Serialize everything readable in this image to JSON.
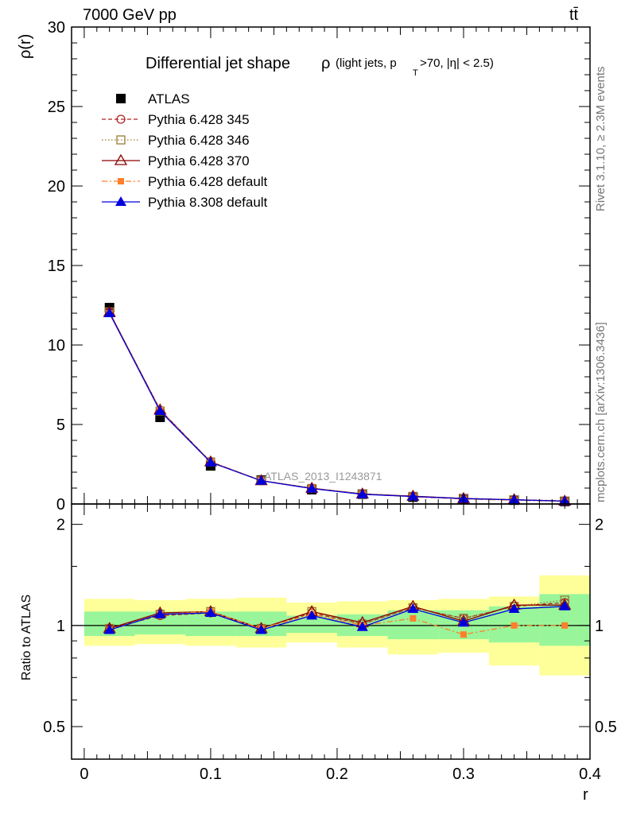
{
  "header": {
    "beam": "7000 GeV pp",
    "process": "tt̄"
  },
  "side_labels": {
    "rivet": "Rivet 3.1.10, ≥ 2.3M events",
    "mcplots": "mcplots.cern.ch [arXiv:1306.3436]"
  },
  "watermark": "ATLAS_2013_I1243871",
  "colors": {
    "atlas": "#000000",
    "p345": "#b22222",
    "p346": "#9a7d32",
    "p370": "#8b0000",
    "p6def": "#ff7f2a",
    "p8def": "#0000dd",
    "band_inner": "#99f599",
    "band_outer": "#ffff99"
  },
  "chart_data": [
    {
      "type": "line",
      "title": "Differential jet shape",
      "title_symbol": "ρ",
      "title_detail_prefix": "(light jets, p",
      "title_detail_sub": "T",
      "title_detail_suffix": ">70, |η| < 2.5)",
      "ylabel": "ρ(r)",
      "xlabel": "",
      "ylim": [
        0,
        30
      ],
      "yticks": [
        0,
        5,
        10,
        15,
        20,
        25,
        30
      ],
      "xlim": [
        -0.01,
        0.4
      ],
      "legend_position": "top-left",
      "x": [
        0.02,
        0.06,
        0.1,
        0.14,
        0.18,
        0.22,
        0.26,
        0.3,
        0.34,
        0.38
      ],
      "series": [
        {
          "name": "ATLAS",
          "key": "atlas",
          "style": "square",
          "values": [
            12.35,
            5.45,
            2.4,
            1.5,
            0.9,
            0.62,
            0.43,
            0.33,
            0.24,
            0.16
          ]
        },
        {
          "name": "Pythia 6.428 345",
          "key": "p345",
          "style": "circle-dashed",
          "values": [
            12.05,
            5.85,
            2.63,
            1.47,
            0.98,
            0.63,
            0.48,
            0.35,
            0.27,
            0.19
          ]
        },
        {
          "name": "Pythia 6.428 346",
          "key": "p346",
          "style": "square-dotted",
          "values": [
            12.08,
            5.85,
            2.65,
            1.47,
            0.98,
            0.63,
            0.48,
            0.35,
            0.27,
            0.19
          ]
        },
        {
          "name": "Pythia 6.428 370",
          "key": "p370",
          "style": "triangle-open",
          "values": [
            12.05,
            5.92,
            2.65,
            1.47,
            0.99,
            0.63,
            0.49,
            0.34,
            0.27,
            0.18
          ]
        },
        {
          "name": "Pythia 6.428 default",
          "key": "p6def",
          "style": "square-dashdot",
          "values": [
            12.0,
            5.9,
            2.64,
            1.47,
            0.98,
            0.62,
            0.45,
            0.31,
            0.24,
            0.16
          ]
        },
        {
          "name": "Pythia 8.308 default",
          "key": "p8def",
          "style": "triangle-filled",
          "values": [
            12.0,
            5.85,
            2.62,
            1.46,
            0.97,
            0.61,
            0.47,
            0.34,
            0.26,
            0.18
          ]
        }
      ]
    },
    {
      "type": "line",
      "title": "",
      "ylabel": "Ratio to ATLAS",
      "xlabel": "r",
      "log_y": true,
      "ylim": [
        0.4,
        2.3
      ],
      "yticks": [
        0.5,
        1,
        2
      ],
      "xlim": [
        -0.01,
        0.4
      ],
      "xticks": [
        0,
        0.1,
        0.2,
        0.3,
        0.4
      ],
      "x": [
        0.02,
        0.06,
        0.1,
        0.14,
        0.18,
        0.22,
        0.26,
        0.3,
        0.34,
        0.38
      ],
      "x_edges": [
        0.0,
        0.04,
        0.08,
        0.12,
        0.16,
        0.2,
        0.24,
        0.28,
        0.32,
        0.36,
        0.4
      ],
      "bands": {
        "inner": [
          [
            0.93,
            1.1
          ],
          [
            0.94,
            1.1
          ],
          [
            0.93,
            1.1
          ],
          [
            0.93,
            1.1
          ],
          [
            0.95,
            1.07
          ],
          [
            0.93,
            1.08
          ],
          [
            0.91,
            1.11
          ],
          [
            0.91,
            1.11
          ],
          [
            0.89,
            1.14
          ],
          [
            0.87,
            1.24
          ]
        ],
        "outer": [
          [
            0.87,
            1.2
          ],
          [
            0.88,
            1.19
          ],
          [
            0.87,
            1.2
          ],
          [
            0.86,
            1.21
          ],
          [
            0.89,
            1.17
          ],
          [
            0.86,
            1.18
          ],
          [
            0.82,
            1.19
          ],
          [
            0.83,
            1.2
          ],
          [
            0.76,
            1.22
          ],
          [
            0.71,
            1.41
          ]
        ]
      },
      "series": [
        {
          "name": "Pythia 6.428 345",
          "key": "p345",
          "style": "circle-dashed",
          "values": [
            0.98,
            1.07,
            1.09,
            0.98,
            1.09,
            1.01,
            1.13,
            1.05,
            1.14,
            1.17
          ]
        },
        {
          "name": "Pythia 6.428 346",
          "key": "p346",
          "style": "square-dotted",
          "values": [
            0.98,
            1.08,
            1.1,
            0.98,
            1.1,
            1.01,
            1.13,
            1.05,
            1.14,
            1.19
          ]
        },
        {
          "name": "Pythia 6.428 370",
          "key": "p370",
          "style": "triangle-open",
          "values": [
            0.98,
            1.09,
            1.1,
            0.98,
            1.1,
            1.02,
            1.14,
            1.03,
            1.15,
            1.15
          ]
        },
        {
          "name": "Pythia 6.428 default",
          "key": "p6def",
          "style": "square-dashdot",
          "values": [
            0.97,
            1.08,
            1.1,
            0.98,
            1.08,
            1.0,
            1.05,
            0.94,
            1.0,
            1.0
          ]
        },
        {
          "name": "Pythia 8.308 default",
          "key": "p8def",
          "style": "triangle-filled",
          "values": [
            0.97,
            1.08,
            1.09,
            0.97,
            1.07,
            0.99,
            1.12,
            1.02,
            1.12,
            1.14
          ]
        }
      ]
    }
  ]
}
